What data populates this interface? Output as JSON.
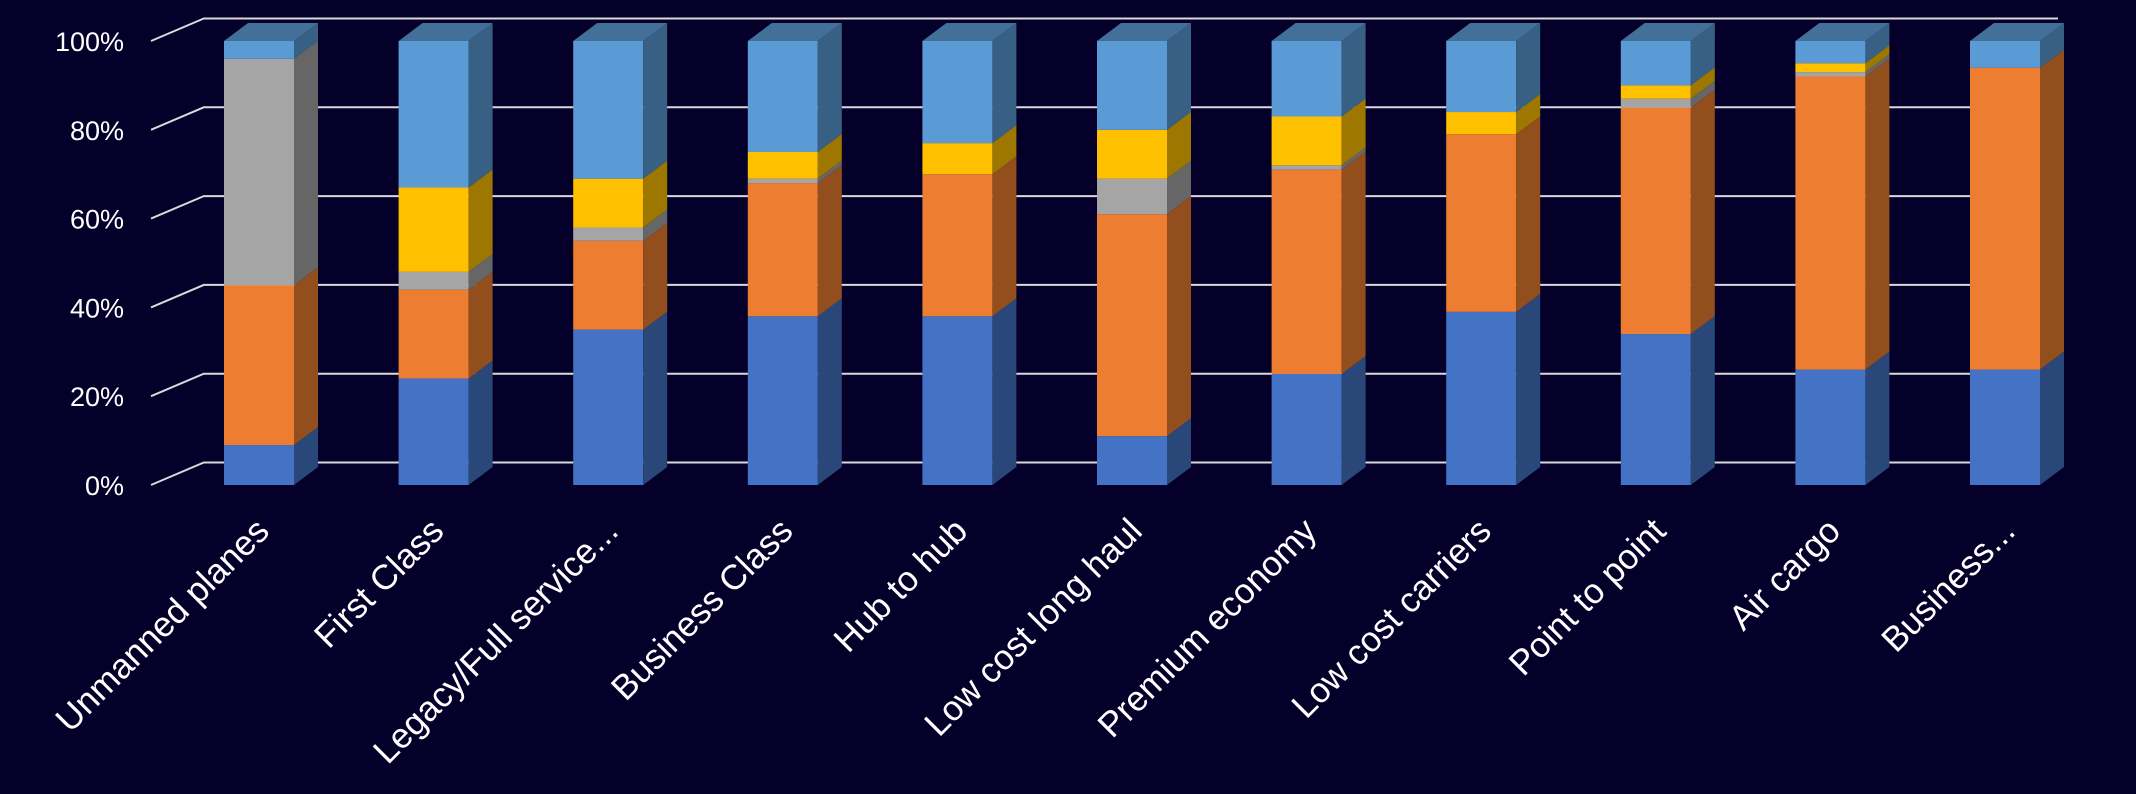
{
  "chart_data": {
    "type": "bar",
    "stacked": true,
    "percent": true,
    "three_d": true,
    "title": "",
    "xlabel": "",
    "ylabel": "",
    "ylim": [
      0,
      100
    ],
    "y_ticks": [
      "0%",
      "20%",
      "40%",
      "60%",
      "80%",
      "100%"
    ],
    "grid": true,
    "legend": "none",
    "background_color": "#04002a",
    "grid_color": "#d9d9d9",
    "categories": [
      "Unmanned planes",
      "First Class",
      "Legacy/Full service...",
      "Business Class",
      "Hub to hub",
      "Low cost long haul",
      "Premium economy",
      "Low cost carriers",
      "Point to point",
      "Air cargo",
      "Business..."
    ],
    "series": [
      {
        "color": "#4472c4",
        "values": [
          9,
          24,
          35,
          38,
          38,
          11,
          25,
          39,
          34,
          26,
          26
        ]
      },
      {
        "color": "#ed7d31",
        "values": [
          36,
          20,
          20,
          30,
          32,
          50,
          46,
          40,
          51,
          66,
          68
        ]
      },
      {
        "color": "#a5a5a5",
        "values": [
          51,
          4,
          3,
          1,
          0,
          8,
          1,
          0,
          2,
          1,
          0
        ]
      },
      {
        "color": "#ffc000",
        "values": [
          0,
          19,
          11,
          6,
          7,
          11,
          11,
          5,
          3,
          2,
          0
        ]
      },
      {
        "color": "#5b9bd5",
        "values": [
          4,
          33,
          31,
          25,
          23,
          20,
          17,
          16,
          10,
          5,
          6
        ]
      }
    ]
  }
}
